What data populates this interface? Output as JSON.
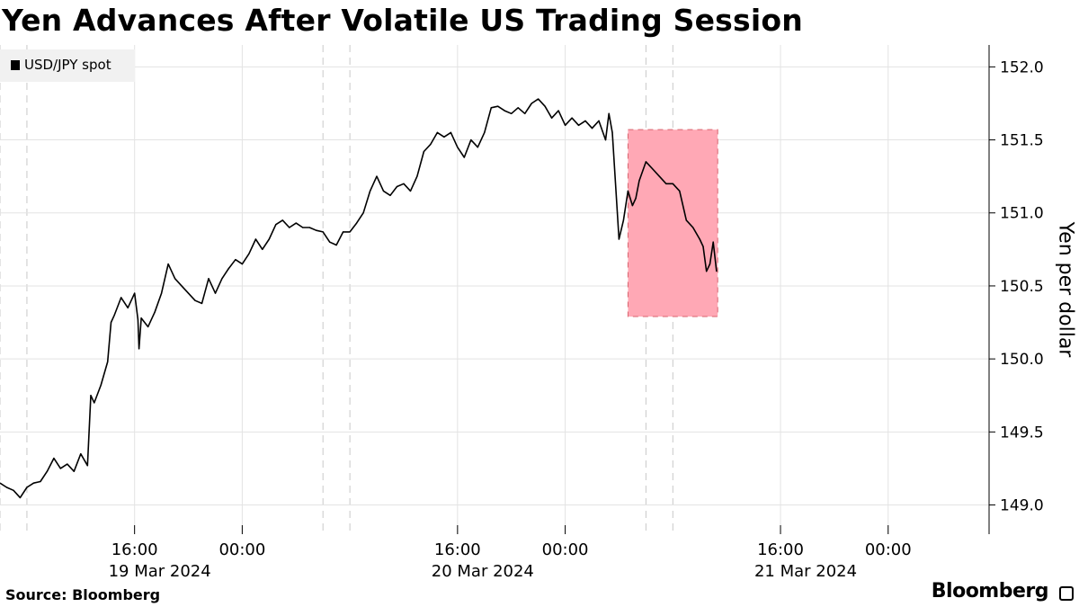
{
  "title": "Yen Advances After Volatile US Trading Session",
  "source": "Source: Bloomberg",
  "brand": "Bloomberg",
  "chart_data": {
    "type": "line",
    "title": "Yen Advances After Volatile US Trading Session",
    "ylabel": "Yen per dollar",
    "ylim": [
      148.8,
      152.15
    ],
    "yticks": [
      "149.0",
      "149.5",
      "150.0",
      "150.5",
      "151.0",
      "151.5",
      "152.0"
    ],
    "xticks": [
      {
        "time": "2024-03-19T16:00",
        "label": "16:00",
        "date": "19 Mar 2024"
      },
      {
        "time": "2024-03-20T00:00",
        "label": "00:00",
        "date": ""
      },
      {
        "time": "2024-03-20T16:00",
        "label": "16:00",
        "date": "20 Mar 2024"
      },
      {
        "time": "2024-03-21T00:00",
        "label": "00:00",
        "date": ""
      },
      {
        "time": "2024-03-21T16:00",
        "label": "16:00",
        "date": "21 Mar 2024"
      },
      {
        "time": "2024-03-22T00:00",
        "label": "00:00",
        "date": ""
      }
    ],
    "xrange": [
      "2024-03-19T06:00",
      "2024-03-22T07:30"
    ],
    "session_breaks": [
      "2024-03-19T06:00",
      "2024-03-19T08:00",
      "2024-03-20T06:00",
      "2024-03-20T08:00",
      "2024-03-21T06:00",
      "2024-03-21T08:00"
    ],
    "highlight": {
      "x": [
        "2024-03-21T04:40",
        "2024-03-21T11:20"
      ],
      "y": [
        150.29,
        151.57
      ],
      "color": "#ffa8b5",
      "border": "#d9646f"
    },
    "grid": true,
    "legend": "top-left",
    "series": [
      {
        "name": "USD/JPY spot",
        "color": "#000000",
        "points": [
          [
            "2024-03-19T06:00",
            149.15
          ],
          [
            "2024-03-19T06:30",
            149.12
          ],
          [
            "2024-03-19T07:00",
            149.1
          ],
          [
            "2024-03-19T07:30",
            149.05
          ],
          [
            "2024-03-19T08:00",
            149.12
          ],
          [
            "2024-03-19T08:30",
            149.15
          ],
          [
            "2024-03-19T09:00",
            149.16
          ],
          [
            "2024-03-19T09:30",
            149.23
          ],
          [
            "2024-03-19T10:00",
            149.32
          ],
          [
            "2024-03-19T10:30",
            149.25
          ],
          [
            "2024-03-19T11:00",
            149.28
          ],
          [
            "2024-03-19T11:30",
            149.23
          ],
          [
            "2024-03-19T12:00",
            149.35
          ],
          [
            "2024-03-19T12:30",
            149.27
          ],
          [
            "2024-03-19T12:45",
            149.75
          ],
          [
            "2024-03-19T13:00",
            149.7
          ],
          [
            "2024-03-19T13:30",
            149.82
          ],
          [
            "2024-03-19T14:00",
            149.98
          ],
          [
            "2024-03-19T14:15",
            150.25
          ],
          [
            "2024-03-19T14:30",
            150.3
          ],
          [
            "2024-03-19T15:00",
            150.42
          ],
          [
            "2024-03-19T15:30",
            150.35
          ],
          [
            "2024-03-19T16:00",
            150.45
          ],
          [
            "2024-03-19T16:15",
            150.27
          ],
          [
            "2024-03-19T16:20",
            150.07
          ],
          [
            "2024-03-19T16:30",
            150.28
          ],
          [
            "2024-03-19T17:00",
            150.22
          ],
          [
            "2024-03-19T17:30",
            150.32
          ],
          [
            "2024-03-19T18:00",
            150.45
          ],
          [
            "2024-03-19T18:30",
            150.65
          ],
          [
            "2024-03-19T19:00",
            150.55
          ],
          [
            "2024-03-19T19:30",
            150.5
          ],
          [
            "2024-03-19T20:00",
            150.45
          ],
          [
            "2024-03-19T20:30",
            150.4
          ],
          [
            "2024-03-19T21:00",
            150.38
          ],
          [
            "2024-03-19T21:30",
            150.55
          ],
          [
            "2024-03-19T22:00",
            150.45
          ],
          [
            "2024-03-19T22:30",
            150.55
          ],
          [
            "2024-03-19T23:00",
            150.62
          ],
          [
            "2024-03-19T23:30",
            150.68
          ],
          [
            "2024-03-20T00:00",
            150.65
          ],
          [
            "2024-03-20T00:30",
            150.72
          ],
          [
            "2024-03-20T01:00",
            150.82
          ],
          [
            "2024-03-20T01:30",
            150.75
          ],
          [
            "2024-03-20T02:00",
            150.82
          ],
          [
            "2024-03-20T02:30",
            150.92
          ],
          [
            "2024-03-20T03:00",
            150.95
          ],
          [
            "2024-03-20T03:30",
            150.9
          ],
          [
            "2024-03-20T04:00",
            150.93
          ],
          [
            "2024-03-20T04:30",
            150.9
          ],
          [
            "2024-03-20T05:00",
            150.9
          ],
          [
            "2024-03-20T05:30",
            150.88
          ],
          [
            "2024-03-20T06:00",
            150.87
          ],
          [
            "2024-03-20T06:30",
            150.8
          ],
          [
            "2024-03-20T07:00",
            150.78
          ],
          [
            "2024-03-20T07:30",
            150.87
          ],
          [
            "2024-03-20T08:00",
            150.87
          ],
          [
            "2024-03-20T08:30",
            150.93
          ],
          [
            "2024-03-20T09:00",
            151.0
          ],
          [
            "2024-03-20T09:30",
            151.15
          ],
          [
            "2024-03-20T10:00",
            151.25
          ],
          [
            "2024-03-20T10:30",
            151.15
          ],
          [
            "2024-03-20T11:00",
            151.12
          ],
          [
            "2024-03-20T11:30",
            151.18
          ],
          [
            "2024-03-20T12:00",
            151.2
          ],
          [
            "2024-03-20T12:30",
            151.15
          ],
          [
            "2024-03-20T13:00",
            151.25
          ],
          [
            "2024-03-20T13:30",
            151.42
          ],
          [
            "2024-03-20T14:00",
            151.47
          ],
          [
            "2024-03-20T14:30",
            151.55
          ],
          [
            "2024-03-20T15:00",
            151.52
          ],
          [
            "2024-03-20T15:30",
            151.55
          ],
          [
            "2024-03-20T16:00",
            151.45
          ],
          [
            "2024-03-20T16:30",
            151.38
          ],
          [
            "2024-03-20T17:00",
            151.5
          ],
          [
            "2024-03-20T17:30",
            151.45
          ],
          [
            "2024-03-20T18:00",
            151.55
          ],
          [
            "2024-03-20T18:30",
            151.72
          ],
          [
            "2024-03-20T19:00",
            151.73
          ],
          [
            "2024-03-20T19:30",
            151.7
          ],
          [
            "2024-03-20T20:00",
            151.68
          ],
          [
            "2024-03-20T20:30",
            151.72
          ],
          [
            "2024-03-20T21:00",
            151.68
          ],
          [
            "2024-03-20T21:30",
            151.75
          ],
          [
            "2024-03-20T22:00",
            151.78
          ],
          [
            "2024-03-20T22:30",
            151.73
          ],
          [
            "2024-03-20T23:00",
            151.65
          ],
          [
            "2024-03-20T23:30",
            151.7
          ],
          [
            "2024-03-21T00:00",
            151.6
          ],
          [
            "2024-03-21T00:30",
            151.65
          ],
          [
            "2024-03-21T01:00",
            151.6
          ],
          [
            "2024-03-21T01:30",
            151.63
          ],
          [
            "2024-03-21T02:00",
            151.58
          ],
          [
            "2024-03-21T02:30",
            151.63
          ],
          [
            "2024-03-21T03:00",
            151.5
          ],
          [
            "2024-03-21T03:15",
            151.68
          ],
          [
            "2024-03-21T03:30",
            151.55
          ],
          [
            "2024-03-21T04:00",
            150.82
          ],
          [
            "2024-03-21T04:20",
            150.95
          ],
          [
            "2024-03-21T04:40",
            151.15
          ],
          [
            "2024-03-21T05:00",
            151.05
          ],
          [
            "2024-03-21T05:15",
            151.1
          ],
          [
            "2024-03-21T05:30",
            151.22
          ],
          [
            "2024-03-21T06:00",
            151.35
          ],
          [
            "2024-03-21T06:30",
            151.3
          ],
          [
            "2024-03-21T07:00",
            151.25
          ],
          [
            "2024-03-21T07:30",
            151.2
          ],
          [
            "2024-03-21T08:00",
            151.2
          ],
          [
            "2024-03-21T08:30",
            151.15
          ],
          [
            "2024-03-21T09:00",
            150.95
          ],
          [
            "2024-03-21T09:30",
            150.9
          ],
          [
            "2024-03-21T10:00",
            150.82
          ],
          [
            "2024-03-21T10:15",
            150.77
          ],
          [
            "2024-03-21T10:30",
            150.6
          ],
          [
            "2024-03-21T10:45",
            150.65
          ],
          [
            "2024-03-21T11:00",
            150.8
          ],
          [
            "2024-03-21T11:15",
            150.6
          ]
        ]
      }
    ]
  }
}
